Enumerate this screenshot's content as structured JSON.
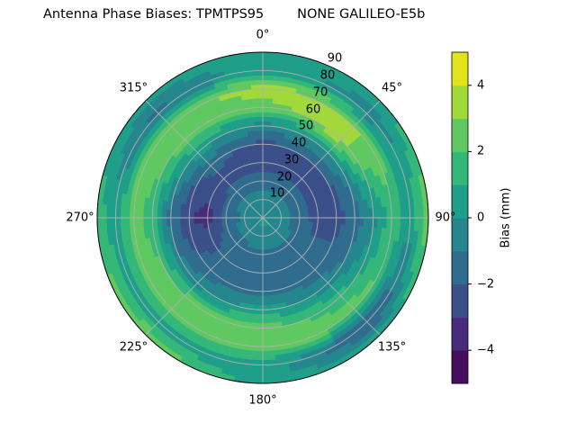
{
  "chart_data": {
    "type": "heatmap",
    "subtype": "polar-contourf",
    "title": "Antenna Phase Biases: TPMTPS95        NONE GALILEO-E5b",
    "azimuth_ticks": [
      "0°",
      "45°",
      "90°",
      "135°",
      "180°",
      "225°",
      "270°",
      "315°"
    ],
    "zenith_ticks": [
      "10",
      "20",
      "30",
      "40",
      "50",
      "60",
      "70",
      "80",
      "90"
    ],
    "zenith_range": [
      0,
      90
    ],
    "colorbar": {
      "label": "Bias (mm)",
      "levels": [
        -5,
        -4,
        -3,
        -2,
        -1,
        0,
        1,
        2,
        3,
        4,
        5
      ],
      "tick_labels": [
        "−4",
        "−2",
        "0",
        "2",
        "4"
      ],
      "tick_values": [
        -4,
        -2,
        0,
        2,
        4
      ],
      "colors": [
        "#440f5c",
        "#472c7a",
        "#3b4f8a",
        "#2f6c8e",
        "#25868e",
        "#1f9e89",
        "#35b779",
        "#60c860",
        "#a2d93a",
        "#e1e31b"
      ]
    },
    "grid": true,
    "azimuths_deg": [
      0,
      45,
      90,
      135,
      180,
      225,
      270,
      315
    ],
    "zeniths_deg": [
      0,
      10,
      20,
      30,
      40,
      50,
      60,
      70,
      80,
      90
    ],
    "values_mm": [
      [
        -0.4,
        -0.4,
        -0.4,
        0.3,
        0.4,
        0.2,
        -0.4,
        -0.4
      ],
      [
        -0.5,
        -0.5,
        -0.5,
        -0.4,
        -0.3,
        -0.5,
        -0.6,
        -0.5
      ],
      [
        -1.5,
        -1.5,
        -1.5,
        -1.2,
        -1.2,
        -1.4,
        -1.8,
        -1.6
      ],
      [
        -2.4,
        -2.4,
        -2.4,
        -1.6,
        -1.5,
        -1.6,
        -3.4,
        -2.4
      ],
      [
        -2.3,
        -2.0,
        -2.5,
        -1.5,
        -1.4,
        -1.5,
        -3.0,
        -1.6
      ],
      [
        -0.5,
        0.2,
        -1.5,
        -0.5,
        0.5,
        -0.4,
        -1.5,
        0.5
      ],
      [
        2.6,
        3.6,
        -0.4,
        1.5,
        2.5,
        2.4,
        1.5,
        2.5
      ],
      [
        3.5,
        3.2,
        1.5,
        2.5,
        2.5,
        2.5,
        2.5,
        2.6
      ],
      [
        0.5,
        -0.5,
        0.5,
        -2.5,
        0.5,
        0.5,
        0.5,
        -1.5
      ],
      [
        0.5,
        0.5,
        3.0,
        0.5,
        0.5,
        3.0,
        1.5,
        0.5
      ]
    ]
  }
}
